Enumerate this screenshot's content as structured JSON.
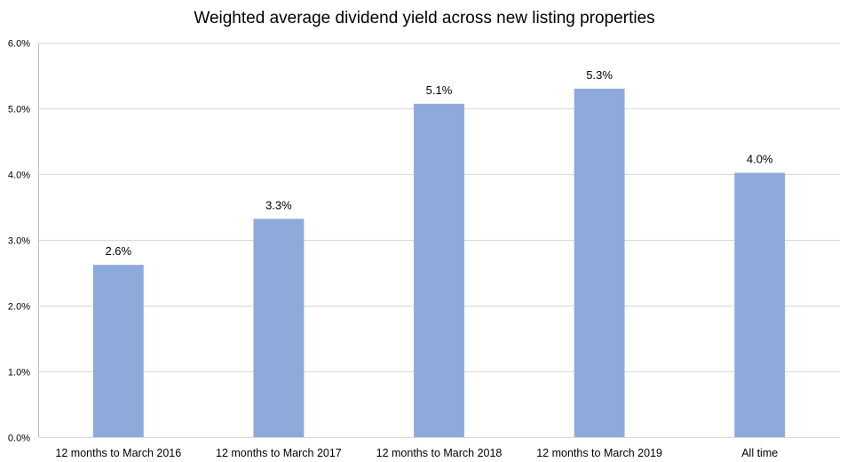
{
  "chart_data": {
    "type": "bar",
    "title": "Weighted average dividend yield across new listing properties",
    "xlabel": "",
    "ylabel": "",
    "categories": [
      "12 months to March 2016",
      "12 months to March 2017",
      "12 months to March 2018",
      "12 months to March 2019",
      "All time"
    ],
    "values": [
      2.62,
      3.32,
      5.07,
      5.3,
      4.02
    ],
    "data_labels": [
      "2.6%",
      "3.3%",
      "5.1%",
      "5.3%",
      "4.0%"
    ],
    "ylim": [
      0,
      6
    ],
    "yticks": [
      0,
      1,
      2,
      3,
      4,
      5,
      6
    ],
    "ytick_labels": [
      "0.0%",
      "1.0%",
      "2.0%",
      "3.0%",
      "4.0%",
      "5.0%",
      "6.0%"
    ],
    "grid": true,
    "legend": "none",
    "bar_color": "#8eaadb"
  }
}
